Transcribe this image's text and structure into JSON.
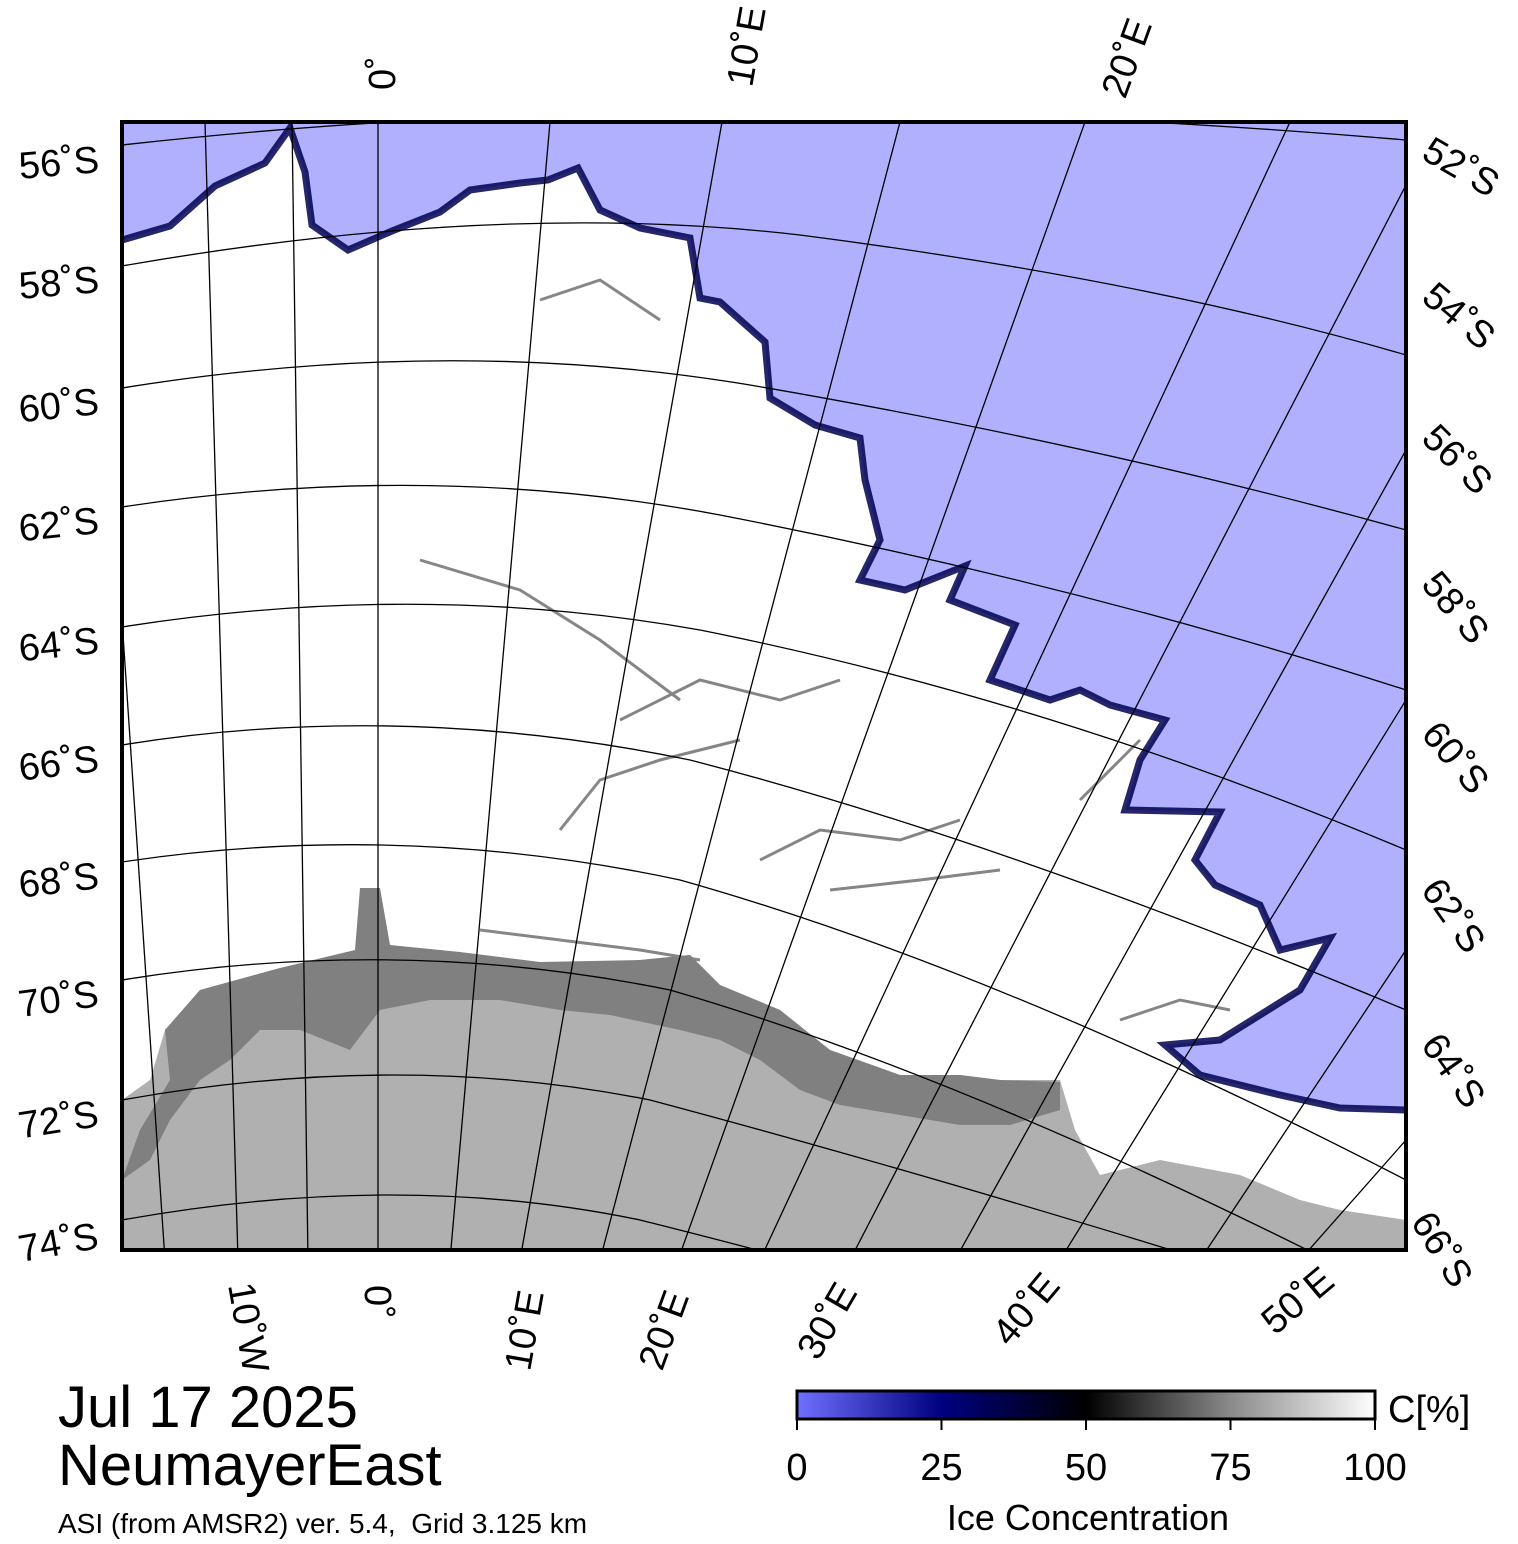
{
  "map": {
    "date": "Jul 17 2025",
    "region": "NeumayerEast",
    "source": "ASI (from AMSR2) ver. 5.4,  Grid 3.125 km",
    "colors": {
      "open_water": "#b0b0ff",
      "ice_full": "#ffffff",
      "land": "#b0b0b0",
      "ice_shelf": "#808080",
      "frame": "#000000",
      "grid": "#000000"
    },
    "top_lon_labels": [
      "0˚",
      "10˚E",
      "20˚E"
    ],
    "left_lat_labels": [
      "56˚S",
      "58˚S",
      "60˚S",
      "62˚S",
      "64˚S",
      "66˚S",
      "68˚S",
      "70˚S",
      "72˚S",
      "74˚S"
    ],
    "right_lat_labels": [
      "52˚S",
      "54˚S",
      "56˚S",
      "58˚S",
      "60˚S",
      "62˚S",
      "64˚S",
      "66˚S"
    ],
    "bottom_lon_labels": [
      "10˚W",
      "0˚",
      "10˚E",
      "20˚E",
      "30˚E",
      "40˚E",
      "50˚E"
    ]
  },
  "colorbar": {
    "unit": "C[%]",
    "title": "Ice Concentration",
    "ticks": [
      "0",
      "25",
      "50",
      "75",
      "100"
    ],
    "tick_values": [
      0,
      25,
      50,
      75,
      100
    ],
    "gradient": [
      "#7070ff",
      "#000080",
      "#000000",
      "#808080",
      "#ffffff"
    ]
  }
}
